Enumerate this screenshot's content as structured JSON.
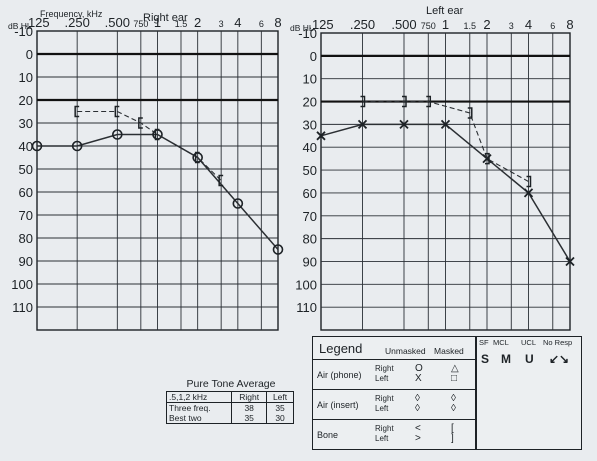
{
  "chart_data": [
    {
      "type": "line",
      "title": "Right ear",
      "xlabel": "Frequency, kHz",
      "ylabel": "dB HL",
      "x_tick_labels": [
        ".125",
        ".250",
        ".500",
        "750",
        "1",
        "1.5",
        "2",
        "3",
        "4",
        "6",
        "8"
      ],
      "y_ticks": [
        -10,
        0,
        10,
        20,
        30,
        40,
        50,
        60,
        70,
        80,
        90,
        100,
        110
      ],
      "ylim": [
        -10,
        120
      ],
      "scale": "log-frequency",
      "series": [
        {
          "symbol": "O",
          "x": [
            0.125,
            0.25,
            0.5,
            1,
            2,
            4,
            8
          ],
          "values": [
            40,
            40,
            35,
            35,
            45,
            65,
            85
          ]
        },
        {
          "symbol": "[",
          "x": [
            0.25,
            0.5,
            0.75,
            1,
            2,
            3
          ],
          "values": [
            25,
            25,
            30,
            35,
            45,
            55
          ]
        }
      ],
      "reference_lines": [
        0,
        20
      ]
    },
    {
      "type": "line",
      "title": "Left ear",
      "ylabel": "dB HL",
      "x_tick_labels": [
        ".125",
        ".250",
        ".500",
        "750",
        "1",
        "1.5",
        "2",
        "3",
        "4",
        "6",
        "8"
      ],
      "y_ticks": [
        -10,
        0,
        10,
        20,
        30,
        40,
        50,
        60,
        70,
        80,
        90,
        100,
        110
      ],
      "ylim": [
        -10,
        120
      ],
      "scale": "log-frequency",
      "series": [
        {
          "symbol": "X",
          "x": [
            0.125,
            0.25,
            0.5,
            1,
            2,
            4,
            8
          ],
          "values": [
            35,
            30,
            30,
            30,
            45,
            60,
            90
          ]
        },
        {
          "symbol": "]",
          "x": [
            0.25,
            0.5,
            0.75,
            1.5,
            2,
            4
          ],
          "values": [
            20,
            20,
            20,
            25,
            45,
            55
          ]
        }
      ],
      "reference_lines": [
        0,
        20
      ]
    }
  ],
  "pta": {
    "title": "Pure Tone Average",
    "freq_label": ".5,1,2 kHz",
    "col_right": "Right",
    "col_left": "Left",
    "row1_label": "Three freq.",
    "row2_label": "Best two",
    "right_three": "38",
    "right_best": "35",
    "left_three": "35",
    "left_best": "30"
  },
  "legend": {
    "title": "Legend",
    "col_unmasked": "Unmasked",
    "col_masked": "Masked",
    "rows": [
      {
        "name": "Air (phone)",
        "side_right": "Right",
        "side_left": "Left",
        "right_unmasked": "O",
        "left_unmasked": "X",
        "right_masked": "△",
        "left_masked": "□"
      },
      {
        "name": "Air (insert)",
        "side_right": "Right",
        "side_left": "Left",
        "right_unmasked": "◊",
        "left_unmasked": "◊",
        "right_masked": "◊",
        "left_masked": "◊"
      },
      {
        "name": "Bone",
        "side_right": "Right",
        "side_left": "Left",
        "right_unmasked": "<",
        "left_unmasked": ">",
        "right_masked": "[",
        "left_masked": "]"
      }
    ]
  },
  "sf_box": {
    "cols": [
      "SF",
      "MCL",
      "UCL",
      "No Resp"
    ],
    "symbols": [
      "S",
      "M",
      "U",
      "↙↘"
    ]
  }
}
